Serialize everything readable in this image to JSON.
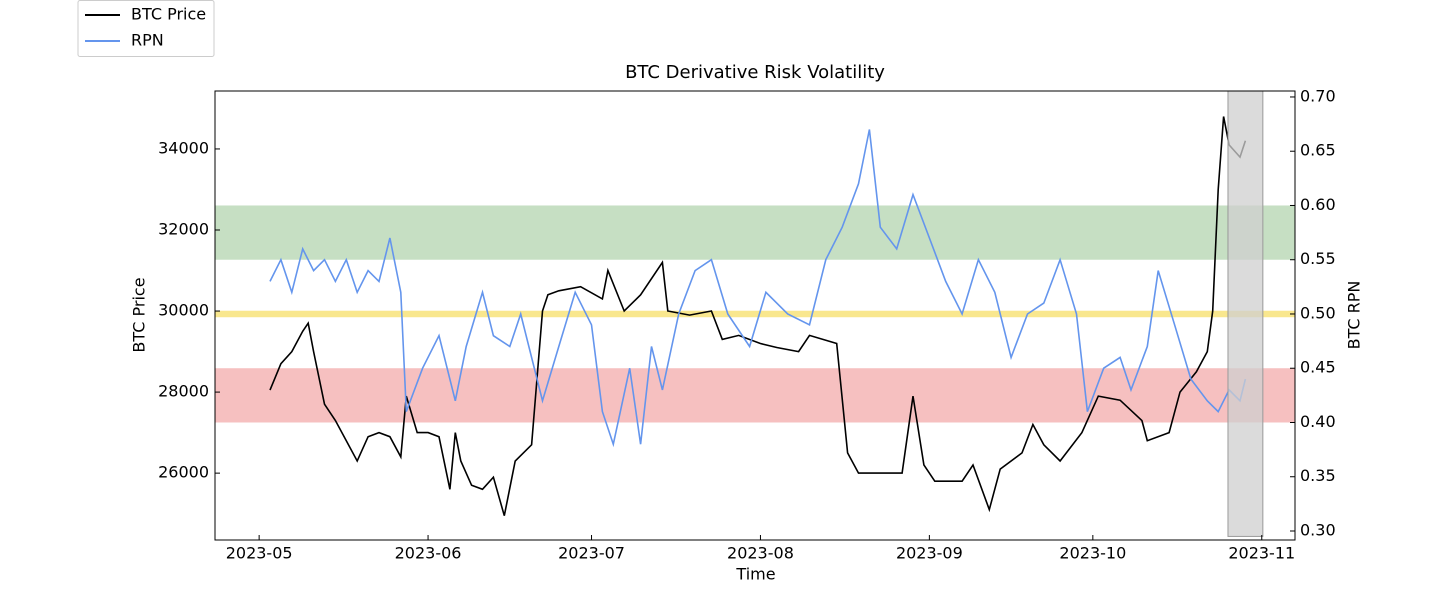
{
  "chart_data": {
    "type": "line",
    "title": "BTC Derivative Risk Volatility",
    "x_label": "Time",
    "y_label": "BTC Price",
    "y2_label": "BTC RPN",
    "xlim": [
      -8.1,
      190.1
    ],
    "xticks": [
      {
        "value": 0,
        "label": "2023-05"
      },
      {
        "value": 31,
        "label": "2023-06"
      },
      {
        "value": 61,
        "label": "2023-07"
      },
      {
        "value": 92,
        "label": "2023-08"
      },
      {
        "value": 123,
        "label": "2023-09"
      },
      {
        "value": 153,
        "label": "2023-10"
      },
      {
        "value": 184,
        "label": "2023-11"
      }
    ],
    "ylim": [
      24350,
      35430
    ],
    "yticks": [
      26000,
      28000,
      30000,
      32000,
      34000
    ],
    "y2lim": [
      0.2917,
      0.7055
    ],
    "y2ticks": [
      {
        "value": 0.3,
        "label": "0.30"
      },
      0.35,
      {
        "value": 0.4,
        "label": "0.40"
      },
      0.45,
      {
        "value": 0.5,
        "label": "0.50"
      },
      0.55,
      {
        "value": 0.6,
        "label": "0.60"
      },
      0.65,
      {
        "value": 0.7,
        "label": "0.70"
      }
    ],
    "legend": "upper left",
    "bands": [
      {
        "axis": "y2",
        "range": [
          0.55,
          0.6
        ],
        "color": "#bcd9b8"
      },
      {
        "axis": "y2",
        "range": [
          0.497,
          0.503
        ],
        "color": "#f8e37a"
      },
      {
        "axis": "y2",
        "range": [
          0.4,
          0.45
        ],
        "color": "#f5b5b5"
      }
    ],
    "highlight": {
      "x": [
        177.8,
        184.2
      ],
      "y2": [
        0.295,
        0.7055
      ],
      "color": "#cfcfcf"
    },
    "series": [
      {
        "name": "BTC Price",
        "color": "#000000",
        "x": [
          2,
          4,
          6,
          8,
          9,
          10,
          12,
          14,
          16,
          18,
          20,
          22,
          24,
          26,
          27,
          29,
          31,
          33,
          35,
          36,
          37,
          39,
          41,
          43,
          45,
          47,
          50,
          52,
          53,
          55,
          59,
          63,
          64,
          67,
          70,
          74,
          75,
          79,
          83,
          85,
          88,
          92,
          95,
          99,
          101,
          106,
          108,
          110,
          114,
          118,
          120,
          122,
          124,
          129,
          131,
          134,
          136,
          140,
          142,
          144,
          147,
          151,
          154,
          158,
          162,
          163,
          167,
          169,
          172,
          174,
          175,
          176,
          177,
          178,
          180,
          181
        ],
        "values": [
          28050,
          28700,
          29000,
          29500,
          29700,
          29000,
          27700,
          27300,
          26800,
          26300,
          26900,
          27000,
          26900,
          26400,
          27900,
          27000,
          27000,
          26900,
          25600,
          27000,
          26300,
          25700,
          25600,
          25900,
          24950,
          26300,
          26700,
          30000,
          30400,
          30500,
          30600,
          30300,
          31000,
          30000,
          30400,
          31200,
          30000,
          29900,
          30000,
          29300,
          29400,
          29200,
          29100,
          29000,
          29400,
          29200,
          26500,
          26000,
          26000,
          26000,
          27900,
          26200,
          25800,
          25800,
          26200,
          25100,
          26100,
          26500,
          27200,
          26700,
          26300,
          27000,
          27900,
          27800,
          27300,
          26800,
          27000,
          28000,
          28500,
          29000,
          30000,
          33000,
          34800,
          34100,
          33800,
          34200
        ]
      },
      {
        "name": "RPN",
        "color": "#6495ed",
        "axis": "y2",
        "x": [
          2,
          4,
          6,
          8,
          10,
          12,
          14,
          16,
          18,
          20,
          22,
          24,
          26,
          27,
          30,
          33,
          36,
          38,
          41,
          43,
          46,
          48,
          50,
          52,
          55,
          58,
          61,
          63,
          65,
          68,
          70,
          72,
          74,
          77,
          80,
          83,
          86,
          90,
          93,
          97,
          101,
          104,
          107,
          110,
          112,
          114,
          117,
          120,
          123,
          126,
          129,
          132,
          135,
          138,
          141,
          144,
          147,
          150,
          152,
          155,
          158,
          160,
          163,
          165,
          168,
          171,
          174,
          176,
          178,
          180,
          181
        ],
        "values": [
          0.53,
          0.55,
          0.52,
          0.56,
          0.54,
          0.55,
          0.53,
          0.55,
          0.52,
          0.54,
          0.53,
          0.57,
          0.52,
          0.41,
          0.45,
          0.48,
          0.42,
          0.47,
          0.52,
          0.48,
          0.47,
          0.5,
          0.46,
          0.42,
          0.47,
          0.52,
          0.49,
          0.41,
          0.38,
          0.45,
          0.38,
          0.47,
          0.43,
          0.5,
          0.54,
          0.55,
          0.5,
          0.47,
          0.52,
          0.5,
          0.49,
          0.55,
          0.58,
          0.62,
          0.67,
          0.58,
          0.56,
          0.61,
          0.57,
          0.53,
          0.5,
          0.55,
          0.52,
          0.46,
          0.5,
          0.51,
          0.55,
          0.5,
          0.41,
          0.45,
          0.46,
          0.43,
          0.47,
          0.54,
          0.49,
          0.44,
          0.42,
          0.41,
          0.43,
          0.42,
          0.44
        ]
      }
    ]
  }
}
